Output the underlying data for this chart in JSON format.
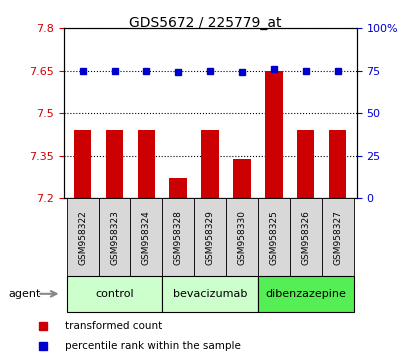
{
  "title": "GDS5672 / 225779_at",
  "samples": [
    "GSM958322",
    "GSM958323",
    "GSM958324",
    "GSM958328",
    "GSM958329",
    "GSM958330",
    "GSM958325",
    "GSM958326",
    "GSM958327"
  ],
  "bar_values": [
    7.44,
    7.44,
    7.44,
    7.27,
    7.44,
    7.34,
    7.65,
    7.44,
    7.44
  ],
  "dot_values": [
    75,
    75,
    75,
    74,
    75,
    74,
    76,
    75,
    75
  ],
  "bar_color": "#cc0000",
  "dot_color": "#0000cc",
  "ylim_left": [
    7.2,
    7.8
  ],
  "ylim_right": [
    0,
    100
  ],
  "yticks_left": [
    7.2,
    7.35,
    7.5,
    7.65,
    7.8
  ],
  "yticks_right": [
    0,
    25,
    50,
    75,
    100
  ],
  "ytick_labels_left": [
    "7.2",
    "7.35",
    "7.5",
    "7.65",
    "7.8"
  ],
  "ytick_labels_right": [
    "0",
    "25",
    "50",
    "75",
    "100%"
  ],
  "groups": [
    {
      "label": "control",
      "indices": [
        0,
        1,
        2
      ],
      "color": "#ccffcc"
    },
    {
      "label": "bevacizumab",
      "indices": [
        3,
        4,
        5
      ],
      "color": "#ccffcc"
    },
    {
      "label": "dibenzazepine",
      "indices": [
        6,
        7,
        8
      ],
      "color": "#66ff66"
    }
  ],
  "agent_label": "agent",
  "legend_bar": "transformed count",
  "legend_dot": "percentile rank within the sample",
  "tick_color_left": "#cc0000",
  "tick_color_right": "#0000cc",
  "bar_bottom": 7.2,
  "bar_width": 0.55
}
